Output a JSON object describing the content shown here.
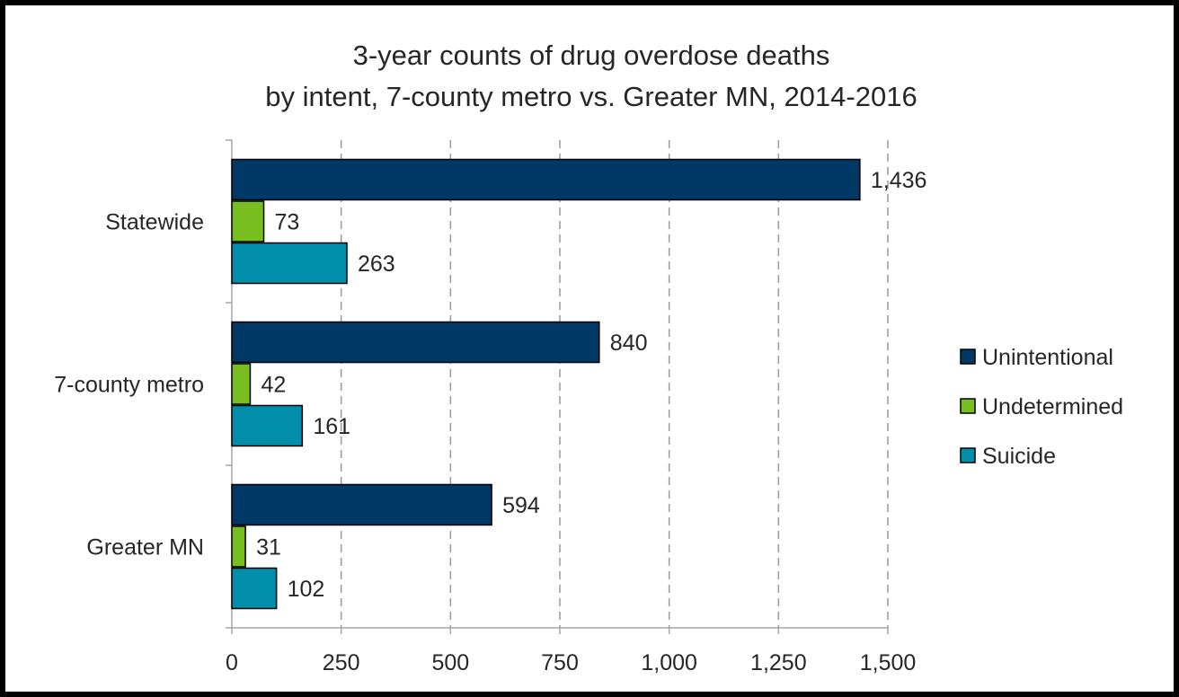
{
  "chart_data": {
    "type": "bar",
    "orientation": "horizontal",
    "title": "3-year counts of drug overdose deaths",
    "subtitle": "by intent, 7-county metro vs. Greater MN, 2014-2016",
    "categories": [
      "Statewide",
      "7-county metro",
      "Greater MN"
    ],
    "series": [
      {
        "name": "Unintentional",
        "color": "#003865",
        "values": [
          1436,
          840,
          594
        ]
      },
      {
        "name": "Undetermined",
        "color": "#78BE21",
        "values": [
          73,
          42,
          31
        ]
      },
      {
        "name": "Suicide",
        "color": "#008EAA",
        "values": [
          263,
          161,
          102
        ]
      }
    ],
    "xlim": [
      0,
      1500
    ],
    "xticks": [
      {
        "value": 0,
        "label": "0"
      },
      {
        "value": 250,
        "label": "250"
      },
      {
        "value": 500,
        "label": "500"
      },
      {
        "value": 750,
        "label": "750"
      },
      {
        "value": 1000,
        "label": "1,000"
      },
      {
        "value": 1250,
        "label": "1,250"
      },
      {
        "value": 1500,
        "label": "1,500"
      }
    ],
    "data_labels": [
      [
        "1,436",
        "73",
        "263"
      ],
      [
        "840",
        "42",
        "161"
      ],
      [
        "594",
        "31",
        "102"
      ]
    ],
    "grid": "vertical-dashed",
    "legend_position": "right"
  }
}
